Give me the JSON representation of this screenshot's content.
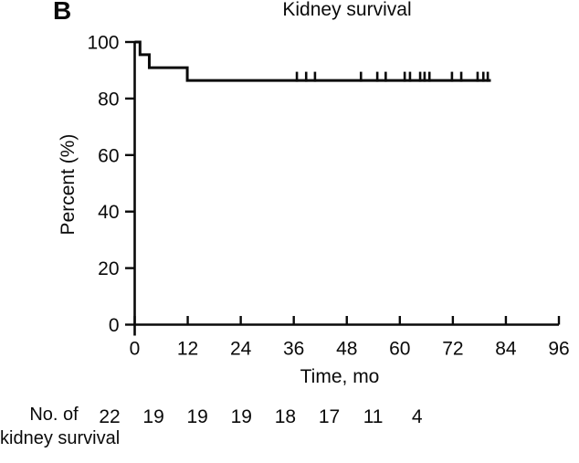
{
  "panel_label": "B",
  "chart_data": {
    "type": "line",
    "subtype": "kaplan-meier-step",
    "title": "Kidney survival",
    "xlabel": "Time, mo",
    "ylabel": "Percent (%)",
    "xlim": [
      0,
      96
    ],
    "ylim": [
      0,
      100
    ],
    "xticks": [
      0,
      12,
      24,
      36,
      48,
      60,
      72,
      84,
      96
    ],
    "yticks": [
      0,
      20,
      40,
      60,
      80,
      100
    ],
    "grid": false,
    "legend": "none",
    "line_color": "#0a0a0a",
    "series": [
      {
        "name": "Kidney survival",
        "step_points": [
          {
            "t": 0,
            "pct": 100
          },
          {
            "t": 1.2,
            "pct": 100
          },
          {
            "t": 1.2,
            "pct": 95.5
          },
          {
            "t": 3.3,
            "pct": 95.5
          },
          {
            "t": 3.3,
            "pct": 90.9
          },
          {
            "t": 11.9,
            "pct": 90.9
          },
          {
            "t": 11.9,
            "pct": 86.4
          },
          {
            "t": 80.6,
            "pct": 86.4
          }
        ]
      }
    ],
    "censor_marks": {
      "pct": 86.4,
      "t": [
        36.7,
        38.8,
        40.8,
        51.2,
        54.9,
        56.8,
        61.1,
        62.3,
        64.6,
        65.6,
        66.7,
        71.8,
        73.9,
        77.6,
        78.9,
        79.9
      ]
    }
  },
  "risk_table": {
    "row_label_line1": "No. of",
    "row_label_line2": "kidney survival",
    "times": [
      0,
      12,
      24,
      36,
      48,
      60,
      72,
      84
    ],
    "values": [
      22,
      19,
      19,
      19,
      18,
      17,
      11,
      4
    ]
  }
}
